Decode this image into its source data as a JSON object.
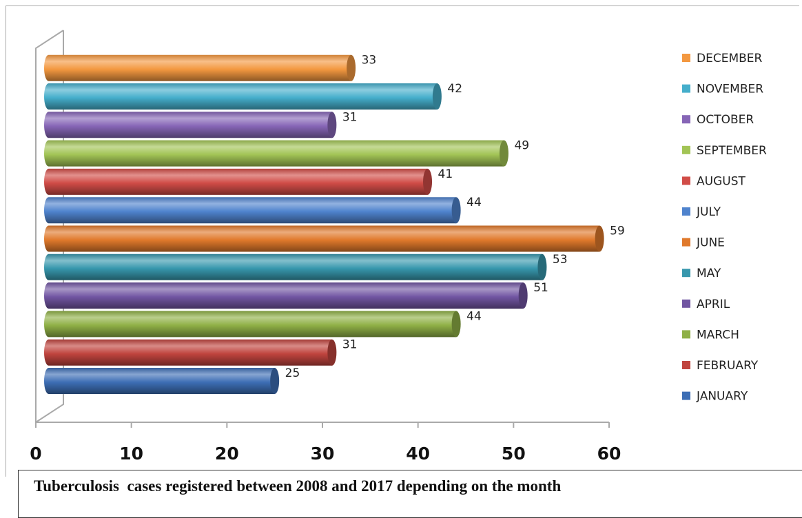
{
  "chart_data": {
    "type": "bar",
    "orientation": "horizontal",
    "categories": [
      "JANUARY",
      "FEBRUARY",
      "MARCH",
      "APRIL",
      "MAY",
      "JUNE",
      "JULY",
      "AUGUST",
      "SEPTEMBER",
      "OCTOBER",
      "NOVEMBER",
      "DECEMBER"
    ],
    "values": [
      25,
      31,
      44,
      51,
      53,
      59,
      44,
      41,
      49,
      31,
      42,
      33
    ],
    "colors": [
      "#3d6eb5",
      "#c0443e",
      "#8fb046",
      "#7155a2",
      "#3797ad",
      "#e0792b",
      "#4f83cd",
      "#d14c47",
      "#a2c455",
      "#8665b6",
      "#45aecb",
      "#f39840"
    ],
    "xlim": [
      0,
      60
    ],
    "xticks": [
      0,
      10,
      20,
      30,
      40,
      50,
      60
    ],
    "xlabel": "",
    "ylabel": "",
    "legend_position": "right",
    "legend_order": "reversed",
    "data_labels": true,
    "grid": false
  },
  "caption": "Tuberculosis  cases registered between 2008 and 2017 depending on the month"
}
